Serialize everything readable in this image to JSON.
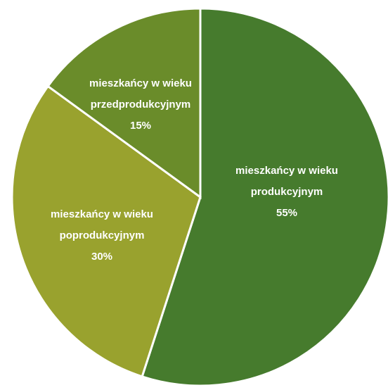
{
  "chart_data": {
    "type": "pie",
    "categories": [
      "mieszkańcy w wieku produkcyjnym",
      "mieszkańcy w wieku poprodukcyjnym",
      "mieszkańcy w wieku przedprodukcyjnym"
    ],
    "values": [
      55,
      30,
      15
    ],
    "value_labels": [
      "55%",
      "30%",
      "15%"
    ],
    "colors": [
      "#467b2d",
      "#99a22e",
      "#6a8c2a"
    ]
  }
}
